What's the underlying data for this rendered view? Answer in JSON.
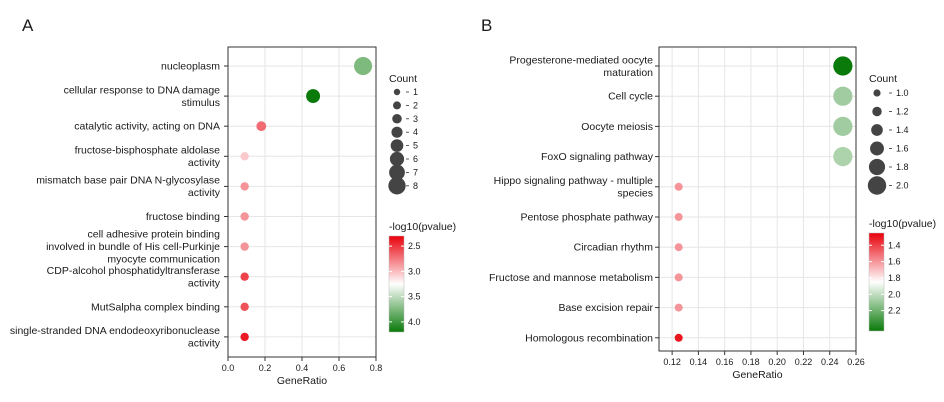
{
  "chart_data": [
    {
      "type": "scatter",
      "panel": "A",
      "xlabel": "GeneRatio",
      "xlim": [
        0,
        0.8
      ],
      "xticks": [
        0.0,
        0.2,
        0.4,
        0.6,
        0.8
      ],
      "xtick_labels": [
        "0.0",
        "0.2",
        "0.4",
        "0.6",
        "0.8"
      ],
      "categories": [
        "nucleoplasm",
        "cellular response to DNA damage\nstimulus",
        "catalytic activity, acting on DNA",
        "fructose-bisphosphate aldolase\nactivity",
        "mismatch base pair DNA N-glycosylase\nactivity",
        "fructose binding",
        "cell adhesive protein binding\ninvolved in bundle of His cell-Purkinje\nmyocyte communication",
        "CDP-alcohol phosphatidyltransferase\nactivity",
        "MutSalpha complex binding",
        "single-stranded DNA endodeoxyribonuclease\nactivity"
      ],
      "points": [
        {
          "x": 0.73,
          "count": 8,
          "neglog10p": 3.75
        },
        {
          "x": 0.46,
          "count": 5,
          "neglog10p": 4.2
        },
        {
          "x": 0.18,
          "count": 2,
          "neglog10p": 2.7
        },
        {
          "x": 0.09,
          "count": 1,
          "neglog10p": 3.05
        },
        {
          "x": 0.09,
          "count": 1,
          "neglog10p": 2.85
        },
        {
          "x": 0.09,
          "count": 1,
          "neglog10p": 2.85
        },
        {
          "x": 0.09,
          "count": 1,
          "neglog10p": 2.85
        },
        {
          "x": 0.09,
          "count": 1,
          "neglog10p": 2.55
        },
        {
          "x": 0.09,
          "count": 1,
          "neglog10p": 2.6
        },
        {
          "x": 0.09,
          "count": 1,
          "neglog10p": 2.4
        }
      ],
      "size_legend": {
        "title": "Count",
        "values": [
          1,
          2,
          3,
          4,
          5,
          6,
          7,
          8
        ],
        "labels": [
          "1",
          "2",
          "3",
          "4",
          "5",
          "6",
          "7",
          "8"
        ]
      },
      "color_legend": {
        "title": "-log10(pvalue)",
        "range": [
          2.3,
          4.2
        ],
        "ticks": [
          2.5,
          3.0,
          3.5,
          4.0
        ],
        "tick_labels": [
          "2.5",
          "3.0",
          "3.5",
          "4.0"
        ],
        "low_color": "#e8000b",
        "mid_color": "#ffffff",
        "high_color": "#0a7a0a"
      },
      "grid": true,
      "legend_position": "right"
    },
    {
      "type": "scatter",
      "panel": "B",
      "xlabel": "GeneRatio",
      "xlim": [
        0.11,
        0.26
      ],
      "xticks": [
        0.12,
        0.14,
        0.16,
        0.18,
        0.2,
        0.22,
        0.24,
        0.26
      ],
      "xtick_labels": [
        "0.12",
        "0.14",
        "0.16",
        "0.18",
        "0.20",
        "0.22",
        "0.24",
        "0.26"
      ],
      "categories": [
        "Progesterone-mediated oocyte\nmaturation",
        "Cell cycle",
        "Oocyte meiosis",
        "FoxO signaling pathway",
        "Hippo signaling pathway - multiple\nspecies",
        "Pentose phosphate pathway",
        "Circadian rhythm",
        "Fructose and mannose metabolism",
        "Base excision repair",
        "Homologous recombination"
      ],
      "points": [
        {
          "x": 0.25,
          "count": 2,
          "neglog10p": 2.45
        },
        {
          "x": 0.25,
          "count": 2,
          "neglog10p": 2.08
        },
        {
          "x": 0.25,
          "count": 2,
          "neglog10p": 2.08
        },
        {
          "x": 0.25,
          "count": 2,
          "neglog10p": 2.05
        },
        {
          "x": 0.125,
          "count": 1,
          "neglog10p": 1.6
        },
        {
          "x": 0.125,
          "count": 1,
          "neglog10p": 1.6
        },
        {
          "x": 0.125,
          "count": 1,
          "neglog10p": 1.6
        },
        {
          "x": 0.125,
          "count": 1,
          "neglog10p": 1.6
        },
        {
          "x": 0.125,
          "count": 1,
          "neglog10p": 1.6
        },
        {
          "x": 0.125,
          "count": 1,
          "neglog10p": 1.3
        }
      ],
      "size_legend": {
        "title": "Count",
        "values": [
          1.0,
          1.2,
          1.4,
          1.6,
          1.8,
          2.0
        ],
        "labels": [
          "1.0",
          "1.2",
          "1.4",
          "1.6",
          "1.8",
          "2.0"
        ]
      },
      "color_legend": {
        "title": "-log10(pvalue)",
        "range": [
          1.25,
          2.45
        ],
        "ticks": [
          1.4,
          1.6,
          1.8,
          2.0,
          2.2
        ],
        "tick_labels": [
          "1.4",
          "1.6",
          "1.8",
          "2.0",
          "2.2"
        ],
        "low_color": "#e8000b",
        "mid_color": "#ffffff",
        "high_color": "#0a7a0a"
      },
      "grid": true,
      "legend_position": "right"
    }
  ]
}
